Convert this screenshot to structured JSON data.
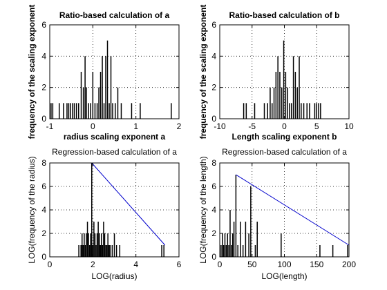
{
  "figure": {
    "background": "#ffffff"
  },
  "chart_data": [
    {
      "type": "bar",
      "title": "Ratio-based calculation of a",
      "ylabel": "frequency of the scaling exponent",
      "xlabel": "radius scaling exponent a",
      "xlim": [
        -1,
        2
      ],
      "ylim": [
        0,
        6
      ],
      "xticks": [
        -1,
        0,
        1,
        2
      ],
      "yticks": [
        0,
        2,
        4,
        6
      ],
      "grid": true,
      "bar_color": "#000000",
      "bars": [
        {
          "x": -0.97,
          "y": 1
        },
        {
          "x": -0.93,
          "y": 1
        },
        {
          "x": -0.78,
          "y": 1
        },
        {
          "x": -0.68,
          "y": 1
        },
        {
          "x": -0.6,
          "y": 1
        },
        {
          "x": -0.56,
          "y": 1
        },
        {
          "x": -0.52,
          "y": 1
        },
        {
          "x": -0.47,
          "y": 1
        },
        {
          "x": -0.43,
          "y": 1
        },
        {
          "x": -0.38,
          "y": 1
        },
        {
          "x": -0.33,
          "y": 1
        },
        {
          "x": -0.27,
          "y": 3
        },
        {
          "x": -0.22,
          "y": 2
        },
        {
          "x": -0.18,
          "y": 4
        },
        {
          "x": -0.15,
          "y": 2
        },
        {
          "x": -0.1,
          "y": 1
        },
        {
          "x": -0.05,
          "y": 1
        },
        {
          "x": 0.0,
          "y": 3
        },
        {
          "x": 0.05,
          "y": 1
        },
        {
          "x": 0.1,
          "y": 1
        },
        {
          "x": 0.14,
          "y": 2
        },
        {
          "x": 0.18,
          "y": 3
        },
        {
          "x": 0.22,
          "y": 4
        },
        {
          "x": 0.26,
          "y": 1
        },
        {
          "x": 0.3,
          "y": 4
        },
        {
          "x": 0.34,
          "y": 5
        },
        {
          "x": 0.38,
          "y": 1
        },
        {
          "x": 0.42,
          "y": 4
        },
        {
          "x": 0.46,
          "y": 1
        },
        {
          "x": 0.52,
          "y": 1
        },
        {
          "x": 0.58,
          "y": 2
        },
        {
          "x": 0.66,
          "y": 1
        },
        {
          "x": 0.9,
          "y": 1
        },
        {
          "x": 1.1,
          "y": 1
        },
        {
          "x": 1.82,
          "y": 1
        }
      ]
    },
    {
      "type": "bar",
      "title": "Ratio-based calculation of b",
      "ylabel": "frequency of the scaling exponent",
      "xlabel": "Length scaling exponent b",
      "xlim": [
        -10,
        10
      ],
      "ylim": [
        0,
        6
      ],
      "xticks": [
        -10,
        -5,
        0,
        5,
        10
      ],
      "yticks": [
        0,
        2,
        4,
        6
      ],
      "grid": true,
      "bar_color": "#000000",
      "bars": [
        {
          "x": -6.3,
          "y": 1
        },
        {
          "x": -5.9,
          "y": 1
        },
        {
          "x": -4.6,
          "y": 1
        },
        {
          "x": -3.1,
          "y": 1
        },
        {
          "x": -2.6,
          "y": 1
        },
        {
          "x": -2.2,
          "y": 2
        },
        {
          "x": -1.9,
          "y": 1
        },
        {
          "x": -1.6,
          "y": 2
        },
        {
          "x": -1.3,
          "y": 3
        },
        {
          "x": -1.0,
          "y": 4
        },
        {
          "x": -0.7,
          "y": 3
        },
        {
          "x": -0.4,
          "y": 2
        },
        {
          "x": -0.1,
          "y": 5
        },
        {
          "x": 0.2,
          "y": 3
        },
        {
          "x": 0.5,
          "y": 2
        },
        {
          "x": 0.8,
          "y": 1
        },
        {
          "x": 1.1,
          "y": 1
        },
        {
          "x": 1.4,
          "y": 4
        },
        {
          "x": 1.7,
          "y": 3
        },
        {
          "x": 2.0,
          "y": 2
        },
        {
          "x": 2.3,
          "y": 4
        },
        {
          "x": 2.6,
          "y": 1
        },
        {
          "x": 3.0,
          "y": 1
        },
        {
          "x": 3.5,
          "y": 1
        },
        {
          "x": 3.9,
          "y": 1
        },
        {
          "x": 4.7,
          "y": 1
        },
        {
          "x": 5.0,
          "y": 1
        },
        {
          "x": 5.3,
          "y": 1
        },
        {
          "x": 5.6,
          "y": 1
        }
      ]
    },
    {
      "type": "bar",
      "title": "Regression-based calculation of a",
      "ylabel": "LOG(frequency of the radius)",
      "xlabel": "LOG(radius)",
      "xlim": [
        0,
        6
      ],
      "ylim": [
        0,
        8
      ],
      "xticks": [
        0,
        2,
        4,
        6
      ],
      "yticks": [
        0,
        2,
        4,
        6,
        8
      ],
      "grid": true,
      "bar_color": "#000000",
      "bars": [
        {
          "x": 1.35,
          "y": 1
        },
        {
          "x": 1.45,
          "y": 1
        },
        {
          "x": 1.5,
          "y": 2
        },
        {
          "x": 1.55,
          "y": 1
        },
        {
          "x": 1.6,
          "y": 2
        },
        {
          "x": 1.65,
          "y": 1
        },
        {
          "x": 1.7,
          "y": 2
        },
        {
          "x": 1.75,
          "y": 3
        },
        {
          "x": 1.8,
          "y": 2
        },
        {
          "x": 1.85,
          "y": 1
        },
        {
          "x": 1.9,
          "y": 2
        },
        {
          "x": 1.95,
          "y": 8
        },
        {
          "x": 2.0,
          "y": 1
        },
        {
          "x": 2.05,
          "y": 3
        },
        {
          "x": 2.1,
          "y": 2
        },
        {
          "x": 2.15,
          "y": 1
        },
        {
          "x": 2.2,
          "y": 2
        },
        {
          "x": 2.25,
          "y": 3
        },
        {
          "x": 2.3,
          "y": 2
        },
        {
          "x": 2.35,
          "y": 1
        },
        {
          "x": 2.4,
          "y": 2
        },
        {
          "x": 2.45,
          "y": 1
        },
        {
          "x": 2.5,
          "y": 3
        },
        {
          "x": 2.55,
          "y": 2
        },
        {
          "x": 2.6,
          "y": 1
        },
        {
          "x": 2.65,
          "y": 1
        },
        {
          "x": 2.7,
          "y": 2
        },
        {
          "x": 2.75,
          "y": 1
        },
        {
          "x": 2.8,
          "y": 1
        },
        {
          "x": 2.9,
          "y": 1
        },
        {
          "x": 3.0,
          "y": 2
        },
        {
          "x": 3.1,
          "y": 1
        },
        {
          "x": 3.25,
          "y": 1
        },
        {
          "x": 5.2,
          "y": 1
        },
        {
          "x": 5.3,
          "y": 1
        }
      ],
      "line": {
        "color": "#0000cc",
        "x": [
          1.95,
          5.35
        ],
        "y": [
          8,
          1
        ]
      }
    },
    {
      "type": "bar",
      "title": "Regression-based calculation of a",
      "ylabel": "LOG(frequency of the length)",
      "xlabel": "LOG(length)",
      "xlim": [
        0,
        200
      ],
      "ylim": [
        0,
        8
      ],
      "xticks": [
        0,
        50,
        100,
        150,
        200
      ],
      "yticks": [
        0,
        2,
        4,
        6,
        8
      ],
      "grid": true,
      "bar_color": "#000000",
      "bars": [
        {
          "x": 2,
          "y": 1
        },
        {
          "x": 4,
          "y": 2
        },
        {
          "x": 6,
          "y": 1
        },
        {
          "x": 8,
          "y": 2
        },
        {
          "x": 10,
          "y": 1
        },
        {
          "x": 12,
          "y": 2
        },
        {
          "x": 14,
          "y": 1
        },
        {
          "x": 16,
          "y": 4
        },
        {
          "x": 18,
          "y": 1
        },
        {
          "x": 20,
          "y": 2
        },
        {
          "x": 22,
          "y": 3
        },
        {
          "x": 25,
          "y": 7
        },
        {
          "x": 28,
          "y": 1
        },
        {
          "x": 32,
          "y": 3
        },
        {
          "x": 36,
          "y": 1
        },
        {
          "x": 40,
          "y": 3
        },
        {
          "x": 45,
          "y": 2
        },
        {
          "x": 48,
          "y": 6
        },
        {
          "x": 55,
          "y": 1
        },
        {
          "x": 58,
          "y": 3
        },
        {
          "x": 95,
          "y": 2
        },
        {
          "x": 155,
          "y": 1
        },
        {
          "x": 175,
          "y": 1
        },
        {
          "x": 198,
          "y": 1
        }
      ],
      "line": {
        "color": "#0000cc",
        "x": [
          25,
          200
        ],
        "y": [
          7,
          1
        ]
      }
    }
  ]
}
